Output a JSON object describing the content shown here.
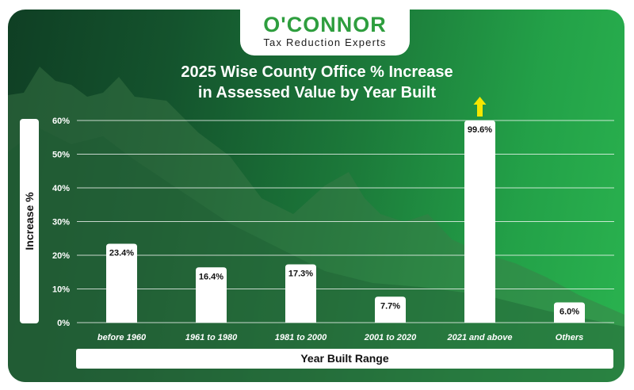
{
  "brand": {
    "name": "O'CONNOR",
    "tagline": "Tax Reduction Experts"
  },
  "chart_data": {
    "type": "bar",
    "title_lines": [
      "2025 Wise County Office % Increase",
      "in Assessed Value by Year Built"
    ],
    "xlabel": "Year Built Range",
    "ylabel": "Increase %",
    "categories": [
      "before 1960",
      "1961 to 1980",
      "1981 to 2000",
      "2001 to 2020",
      "2021 and above",
      "Others"
    ],
    "values": [
      23.4,
      16.4,
      17.3,
      7.7,
      99.6,
      6.0
    ],
    "value_labels": [
      "23.4%",
      "16.4%",
      "17.3%",
      "7.7%",
      "99.6%",
      "6.0%"
    ],
    "yticks": [
      0,
      10,
      20,
      30,
      40,
      50,
      60
    ],
    "ytick_labels": [
      "0%",
      "10%",
      "20%",
      "30%",
      "40%",
      "50%",
      "60%"
    ],
    "ylim": [
      0,
      60
    ],
    "grid": true,
    "annotations": [
      {
        "category": "2021 and above",
        "marker": "up-arrow-icon",
        "meaning": "value exceeds axis maximum"
      }
    ],
    "colors": {
      "bar": "#ffffff",
      "arrow": "#f5e600",
      "grid": "#ffffff",
      "accent": "#2e9e3e"
    }
  }
}
